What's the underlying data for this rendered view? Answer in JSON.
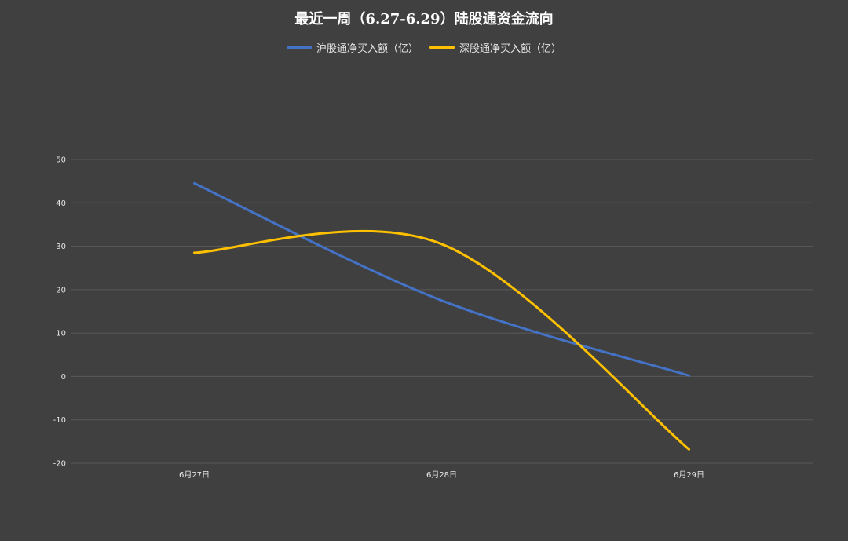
{
  "chart_data": {
    "type": "line",
    "title": "最近一周（6.27-6.29）陆股通资金流向",
    "categories": [
      "6月27日",
      "6月28日",
      "6月29日"
    ],
    "series": [
      {
        "name": "沪股通净买入额（亿）",
        "values": [
          44.5,
          17.5,
          0.2
        ],
        "color": "#4472C4"
      },
      {
        "name": "深股通净买入额（亿）",
        "values": [
          28.5,
          30.5,
          -16.8
        ],
        "color": "#FFC000"
      }
    ],
    "ylim": [
      -20,
      50
    ],
    "yticks": [
      50,
      40,
      30,
      20,
      10,
      0,
      -10,
      -20
    ],
    "smooth": true,
    "grid": true,
    "legend_position": "top"
  },
  "colors": {
    "background": "#404040",
    "gridline": "#595959",
    "text": "#e6e6e6"
  }
}
